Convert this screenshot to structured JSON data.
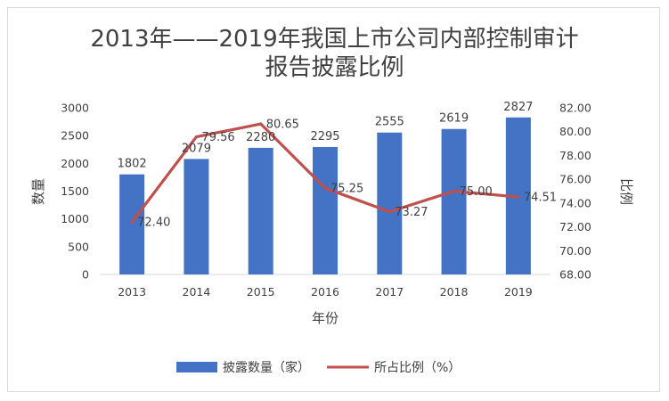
{
  "chart_data": {
    "type": "bar+line",
    "title": "2013年——2019年我国上市公司内部控制审计报告披露比例",
    "title_line1": "2013年——2019年我国上市公司内部控制审计",
    "title_line2": "报告披露比例",
    "categories": [
      "2013",
      "2014",
      "2015",
      "2016",
      "2017",
      "2018",
      "2019"
    ],
    "xlabel": "年份",
    "ylabel_left": "数量",
    "ylabel_right": "比例",
    "ylim_left": [
      0,
      3000
    ],
    "yticks_left": [
      "0",
      "500",
      "1000",
      "1500",
      "2000",
      "2500",
      "3000"
    ],
    "ylim_right": [
      68,
      82
    ],
    "yticks_right": [
      "68.00",
      "70.00",
      "72.00",
      "74.00",
      "76.00",
      "78.00",
      "80.00",
      "82.00"
    ],
    "grid": false,
    "legend_position": "bottom",
    "series": [
      {
        "name": "披露数量（家）",
        "type": "bar",
        "axis": "left",
        "color": "#4472c4",
        "values": [
          1802,
          2079,
          2280,
          2295,
          2555,
          2619,
          2827
        ],
        "labels": [
          "1802",
          "2079",
          "2280",
          "2295",
          "2555",
          "2619",
          "2827"
        ]
      },
      {
        "name": "所占比例（%）",
        "type": "line",
        "axis": "right",
        "color": "#c0504d",
        "values": [
          72.4,
          79.56,
          80.65,
          75.25,
          73.27,
          75.0,
          74.51
        ],
        "labels": [
          "72.40",
          "79.56",
          "80.65",
          "75.25",
          "73.27",
          "75.00",
          "74.51"
        ]
      }
    ]
  }
}
